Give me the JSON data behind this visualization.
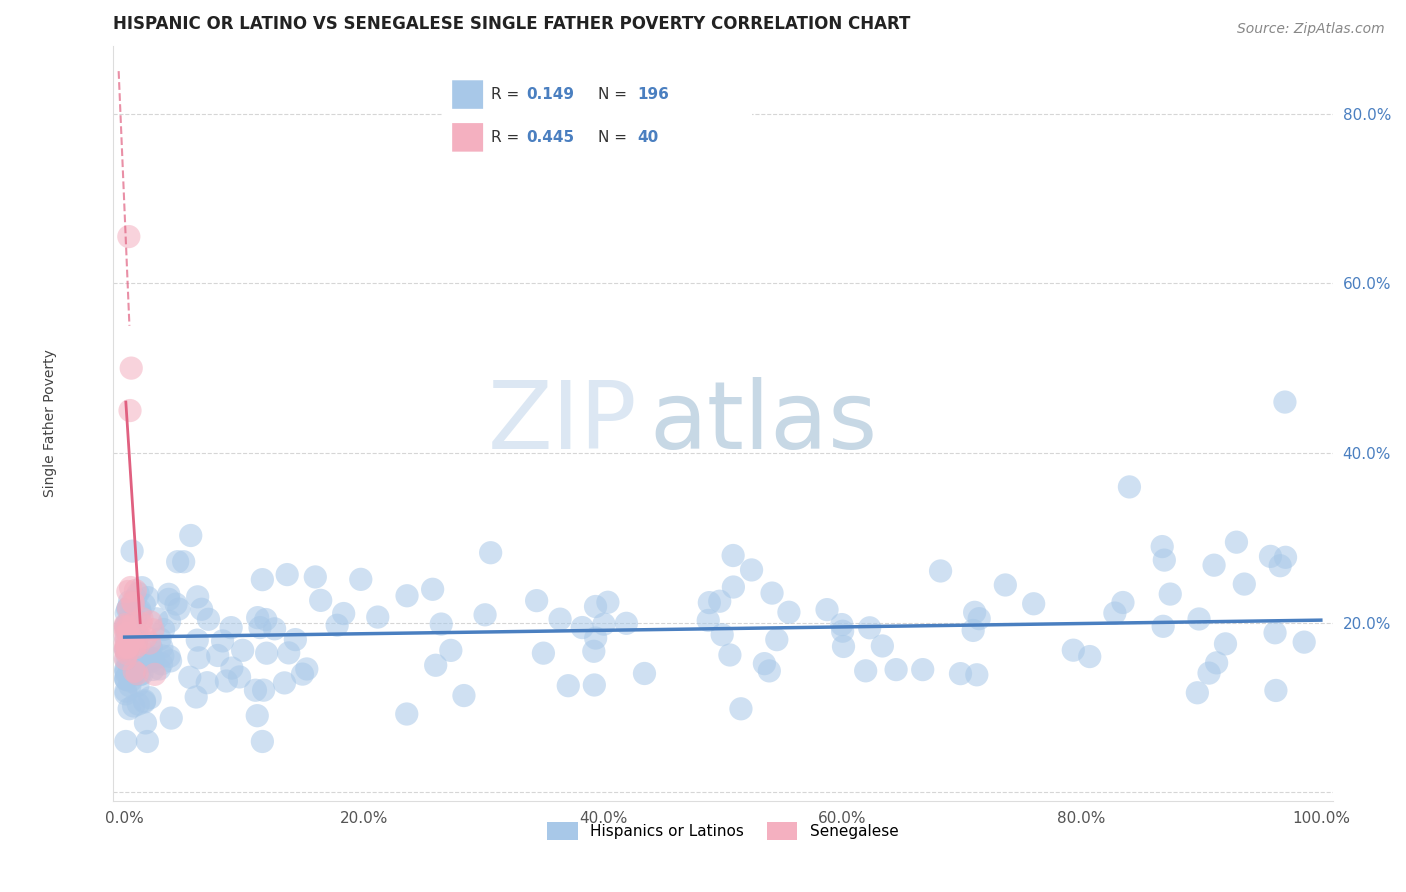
{
  "title": "HISPANIC OR LATINO VS SENEGALESE SINGLE FATHER POVERTY CORRELATION CHART",
  "source": "Source: ZipAtlas.com",
  "ylabel": "Single Father Poverty",
  "watermark_zip": "ZIP",
  "watermark_atlas": "atlas",
  "legend_labels": [
    "Hispanics or Latinos",
    "Senegalese"
  ],
  "blue_R": "0.149",
  "blue_N": "196",
  "pink_R": "0.445",
  "pink_N": "40",
  "blue_color": "#a8c8e8",
  "pink_color": "#f4b0c0",
  "blue_line_color": "#4a7fc0",
  "pink_line_color": "#e06080",
  "background_color": "#ffffff",
  "grid_color": "#cccccc",
  "xlim": [
    -0.01,
    1.01
  ],
  "ylim": [
    -0.01,
    0.88
  ],
  "ytick_vals": [
    0.0,
    0.2,
    0.4,
    0.6,
    0.8
  ],
  "ytick_labels": [
    "",
    "20.0%",
    "40.0%",
    "60.0%",
    "80.0%"
  ],
  "xtick_vals": [
    0.0,
    0.2,
    0.4,
    0.6,
    0.8,
    1.0
  ],
  "xtick_labels": [
    "0.0%",
    "20.0%",
    "40.0%",
    "60.0%",
    "80.0%",
    "100.0%"
  ],
  "title_fontsize": 12,
  "axis_label_fontsize": 10,
  "tick_fontsize": 11,
  "source_fontsize": 10
}
